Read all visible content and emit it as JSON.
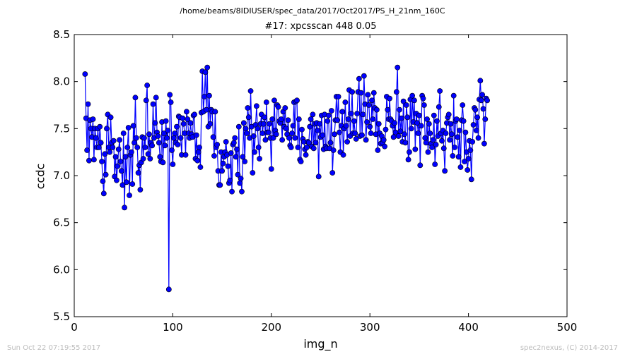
{
  "header": {
    "path": "/home/beams/8IDIUSER/spec_data/2017/Oct2017/PS_H_21nm_160C"
  },
  "footer": {
    "timestamp": "Sun Oct 22 07:19:55 2017",
    "credit": "spec2nexus, (C) 2014-2017"
  },
  "chart_data": {
    "type": "line",
    "title": "#17: xpcsscan 448 0.05",
    "xlabel": "img_n",
    "ylabel": "ccdc",
    "xlim": [
      0,
      500
    ],
    "ylim": [
      5.5,
      8.5
    ],
    "xticks": [
      0,
      100,
      200,
      300,
      400,
      500
    ],
    "yticks": [
      5.5,
      6.0,
      6.5,
      7.0,
      7.5,
      8.0,
      8.5
    ],
    "xtick_labels": [
      "0",
      "100",
      "200",
      "300",
      "400",
      "500"
    ],
    "ytick_labels": [
      "5.5",
      "6.0",
      "6.5",
      "7.0",
      "7.5",
      "8.0",
      "8.5"
    ],
    "grid": false,
    "legend": "none",
    "series": [
      {
        "color": "#0000ff",
        "marker": "circle",
        "x_start": 11,
        "x_step": 1,
        "values": [
          8.08,
          7.61,
          7.27,
          7.76,
          7.16,
          7.59,
          7.5,
          7.41,
          7.6,
          7.17,
          7.5,
          7.4,
          7.3,
          7.5,
          7.3,
          7.52,
          7.35,
          7.15,
          6.94,
          6.81,
          7.23,
          7.01,
          7.5,
          7.65,
          7.3,
          7.25,
          7.62,
          7.35,
          7.3,
          7.37,
          6.99,
          7.2,
          6.95,
          7.1,
          7.28,
          7.38,
          7.15,
          7.05,
          6.9,
          7.45,
          6.66,
          7.2,
          6.93,
          7.3,
          7.51,
          6.79,
          7.22,
          7.25,
          6.91,
          7.53,
          7.35,
          7.83,
          7.4,
          7.3,
          7.03,
          7.11,
          6.85,
          7.14,
          7.41,
          7.18,
          7.4,
          7.3,
          7.8,
          7.96,
          7.23,
          7.44,
          7.18,
          7.35,
          7.32,
          7.76,
          7.4,
          7.56,
          7.83,
          7.46,
          7.42,
          7.35,
          7.2,
          7.15,
          7.57,
          7.14,
          7.45,
          7.32,
          7.58,
          7.4,
          7.48,
          5.79,
          7.86,
          7.78,
          7.27,
          7.12,
          7.4,
          7.45,
          7.35,
          7.52,
          7.33,
          7.63,
          7.62,
          7.4,
          7.22,
          7.61,
          7.55,
          7.45,
          7.22,
          7.68,
          7.6,
          7.45,
          7.4,
          7.56,
          7.44,
          7.41,
          7.64,
          7.65,
          7.18,
          7.43,
          7.16,
          7.25,
          7.3,
          7.09,
          7.67,
          8.11,
          7.68,
          7.84,
          8.1,
          7.7,
          8.15,
          7.52,
          7.85,
          7.55,
          7.7,
          7.68,
          7.41,
          7.21,
          7.68,
          7.3,
          7.33,
          7.05,
          6.9,
          6.9,
          7.25,
          7.05,
          7.13,
          7.2,
          7.25,
          7.36,
          7.22,
          7.1,
          6.92,
          6.95,
          7.24,
          6.83,
          7.33,
          7.35,
          7.4,
          7.2,
          7.28,
          7.01,
          7.52,
          6.92,
          6.97,
          6.83,
          7.2,
          7.56,
          7.15,
          7.5,
          7.45,
          7.72,
          7.62,
          7.4,
          7.9,
          7.52,
          7.03,
          7.42,
          7.25,
          7.54,
          7.74,
          7.5,
          7.3,
          7.18,
          7.55,
          7.65,
          7.45,
          7.55,
          7.62,
          7.38,
          7.78,
          7.46,
          7.46,
          7.55,
          7.4,
          7.07,
          7.6,
          7.4,
          7.8,
          7.48,
          7.44,
          7.75,
          7.73,
          7.58,
          7.56,
          7.6,
          7.38,
          7.68,
          7.52,
          7.72,
          7.5,
          7.44,
          7.59,
          7.4,
          7.32,
          7.3,
          7.45,
          7.53,
          7.78,
          7.4,
          7.79,
          7.8,
          7.3,
          7.6,
          7.17,
          7.15,
          7.49,
          7.39,
          7.36,
          7.28,
          7.22,
          7.3,
          7.36,
          7.35,
          7.52,
          7.6,
          7.31,
          7.65,
          7.29,
          7.55,
          7.35,
          7.56,
          7.48,
          6.99,
          7.55,
          7.41,
          7.64,
          7.43,
          7.28,
          7.65,
          7.31,
          7.29,
          7.58,
          7.64,
          7.29,
          7.35,
          7.69,
          7.03,
          7.27,
          7.44,
          7.59,
          7.84,
          7.59,
          7.84,
          7.46,
          7.25,
          7.53,
          7.68,
          7.22,
          7.5,
          7.78,
          7.53,
          7.36,
          7.6,
          7.91,
          7.42,
          7.66,
          7.89,
          7.45,
          7.58,
          7.45,
          7.39,
          7.66,
          7.89,
          8.03,
          7.42,
          7.88,
          7.43,
          7.65,
          8.06,
          7.76,
          7.38,
          7.57,
          7.86,
          7.75,
          7.52,
          7.45,
          7.8,
          7.6,
          7.88,
          7.72,
          7.44,
          7.7,
          7.27,
          7.55,
          7.45,
          7.34,
          7.42,
          7.35,
          7.38,
          7.31,
          7.49,
          7.84,
          7.7,
          7.6,
          7.82,
          7.6,
          7.58,
          7.53,
          7.41,
          7.56,
          7.46,
          7.89,
          8.15,
          7.42,
          7.7,
          7.47,
          7.61,
          7.36,
          7.79,
          7.44,
          7.35,
          7.75,
          7.62,
          7.17,
          7.25,
          7.81,
          7.5,
          7.85,
          7.57,
          7.8,
          7.28,
          7.66,
          7.56,
          7.45,
          7.64,
          7.11,
          7.53,
          7.85,
          7.82,
          7.75,
          7.4,
          7.35,
          7.6,
          7.25,
          7.55,
          7.45,
          7.34,
          7.3,
          7.38,
          7.64,
          7.12,
          7.33,
          7.58,
          7.42,
          7.73,
          7.9,
          7.45,
          7.37,
          7.48,
          7.29,
          7.05,
          7.45,
          7.56,
          7.62,
          7.65,
          7.38,
          7.55,
          7.44,
          7.21,
          7.85,
          7.3,
          7.58,
          7.6,
          7.41,
          7.2,
          7.48,
          7.09,
          7.59,
          7.75,
          7.58,
          7.15,
          7.46,
          7.25,
          7.06,
          7.18,
          7.37,
          7.27,
          6.96,
          7.36,
          7.54,
          7.72,
          7.7,
          7.48,
          7.62,
          7.4,
          7.81,
          8.01,
          7.8,
          7.86,
          7.71,
          7.34,
          7.6,
          7.82,
          7.8
        ]
      }
    ]
  }
}
